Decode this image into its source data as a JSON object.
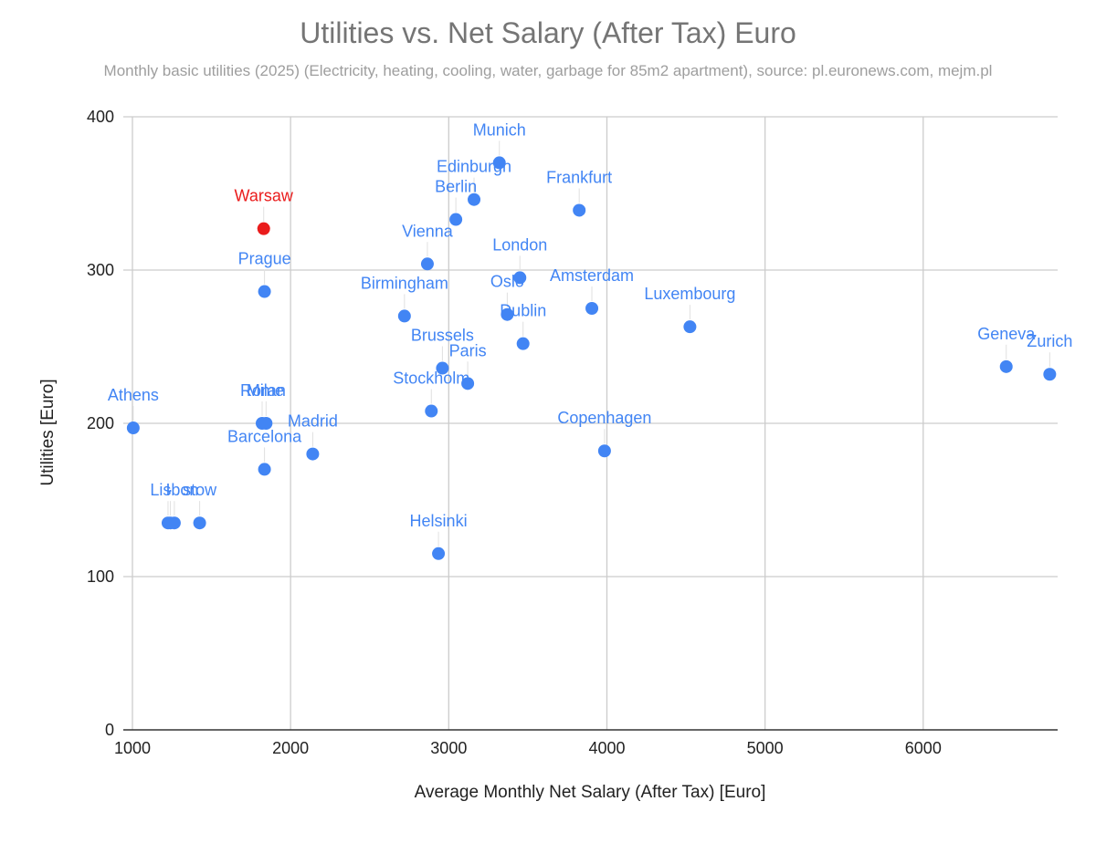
{
  "chart_data": {
    "type": "scatter",
    "title": "Utilities vs. Net Salary (After Tax) Euro",
    "subtitle": "Monthly basic utilities (2025) (Electricity, heating, cooling, water, garbage for 85m2 apartment), source: pl.euronews.com, mejm.pl",
    "xlabel": "Average Monthly Net Salary (After Tax) [Euro]",
    "ylabel": "Utilities [Euro]",
    "xlim": [
      1000,
      6850
    ],
    "ylim": [
      0,
      400
    ],
    "xticks": [
      1000,
      2000,
      3000,
      4000,
      5000,
      6000
    ],
    "yticks": [
      0,
      100,
      200,
      300,
      400
    ],
    "grid": true,
    "colors": {
      "default": "#4285f4",
      "highlight": "#ea1c1c"
    },
    "points": [
      {
        "label": "Munich",
        "x": 3320,
        "y": 370
      },
      {
        "label": "Edinburgh",
        "x": 3160,
        "y": 346
      },
      {
        "label": "Berlin",
        "x": 3045,
        "y": 333
      },
      {
        "label": "Frankfurt",
        "x": 3825,
        "y": 339
      },
      {
        "label": "Warsaw",
        "x": 1830,
        "y": 327,
        "highlight": true
      },
      {
        "label": "Vienna",
        "x": 2865,
        "y": 304
      },
      {
        "label": "London",
        "x": 3450,
        "y": 295
      },
      {
        "label": "Prague",
        "x": 1835,
        "y": 286
      },
      {
        "label": "Oslo",
        "x": 3370,
        "y": 271
      },
      {
        "label": "Amsterdam",
        "x": 3905,
        "y": 275
      },
      {
        "label": "Birmingham",
        "x": 2720,
        "y": 270
      },
      {
        "label": "Luxembourg",
        "x": 4525,
        "y": 263
      },
      {
        "label": "Dublin",
        "x": 3470,
        "y": 252
      },
      {
        "label": "Brussels",
        "x": 2960,
        "y": 236
      },
      {
        "label": "Paris",
        "x": 3120,
        "y": 226
      },
      {
        "label": "Geneva",
        "x": 6525,
        "y": 237
      },
      {
        "label": "Zurich",
        "x": 6800,
        "y": 232
      },
      {
        "label": "Stockholm",
        "x": 2890,
        "y": 208
      },
      {
        "label": "Athens",
        "x": 1005,
        "y": 197
      },
      {
        "label": "Rome",
        "x": 1820,
        "y": 200
      },
      {
        "label": "Milan",
        "x": 1845,
        "y": 200
      },
      {
        "label": "Madrid",
        "x": 2140,
        "y": 180
      },
      {
        "label": "Copenhagen",
        "x": 3985,
        "y": 182
      },
      {
        "label": "Barcelona",
        "x": 1835,
        "y": 170
      },
      {
        "label": "Lisbon",
        "x": 1265,
        "y": 135
      },
      {
        "label": "I",
        "x": 1225,
        "y": 135
      },
      {
        "label": "·",
        "x": 1240,
        "y": 135
      },
      {
        "label": "stow",
        "x": 1425,
        "y": 135
      },
      {
        "label": "Helsinki",
        "x": 2935,
        "y": 115
      }
    ]
  }
}
